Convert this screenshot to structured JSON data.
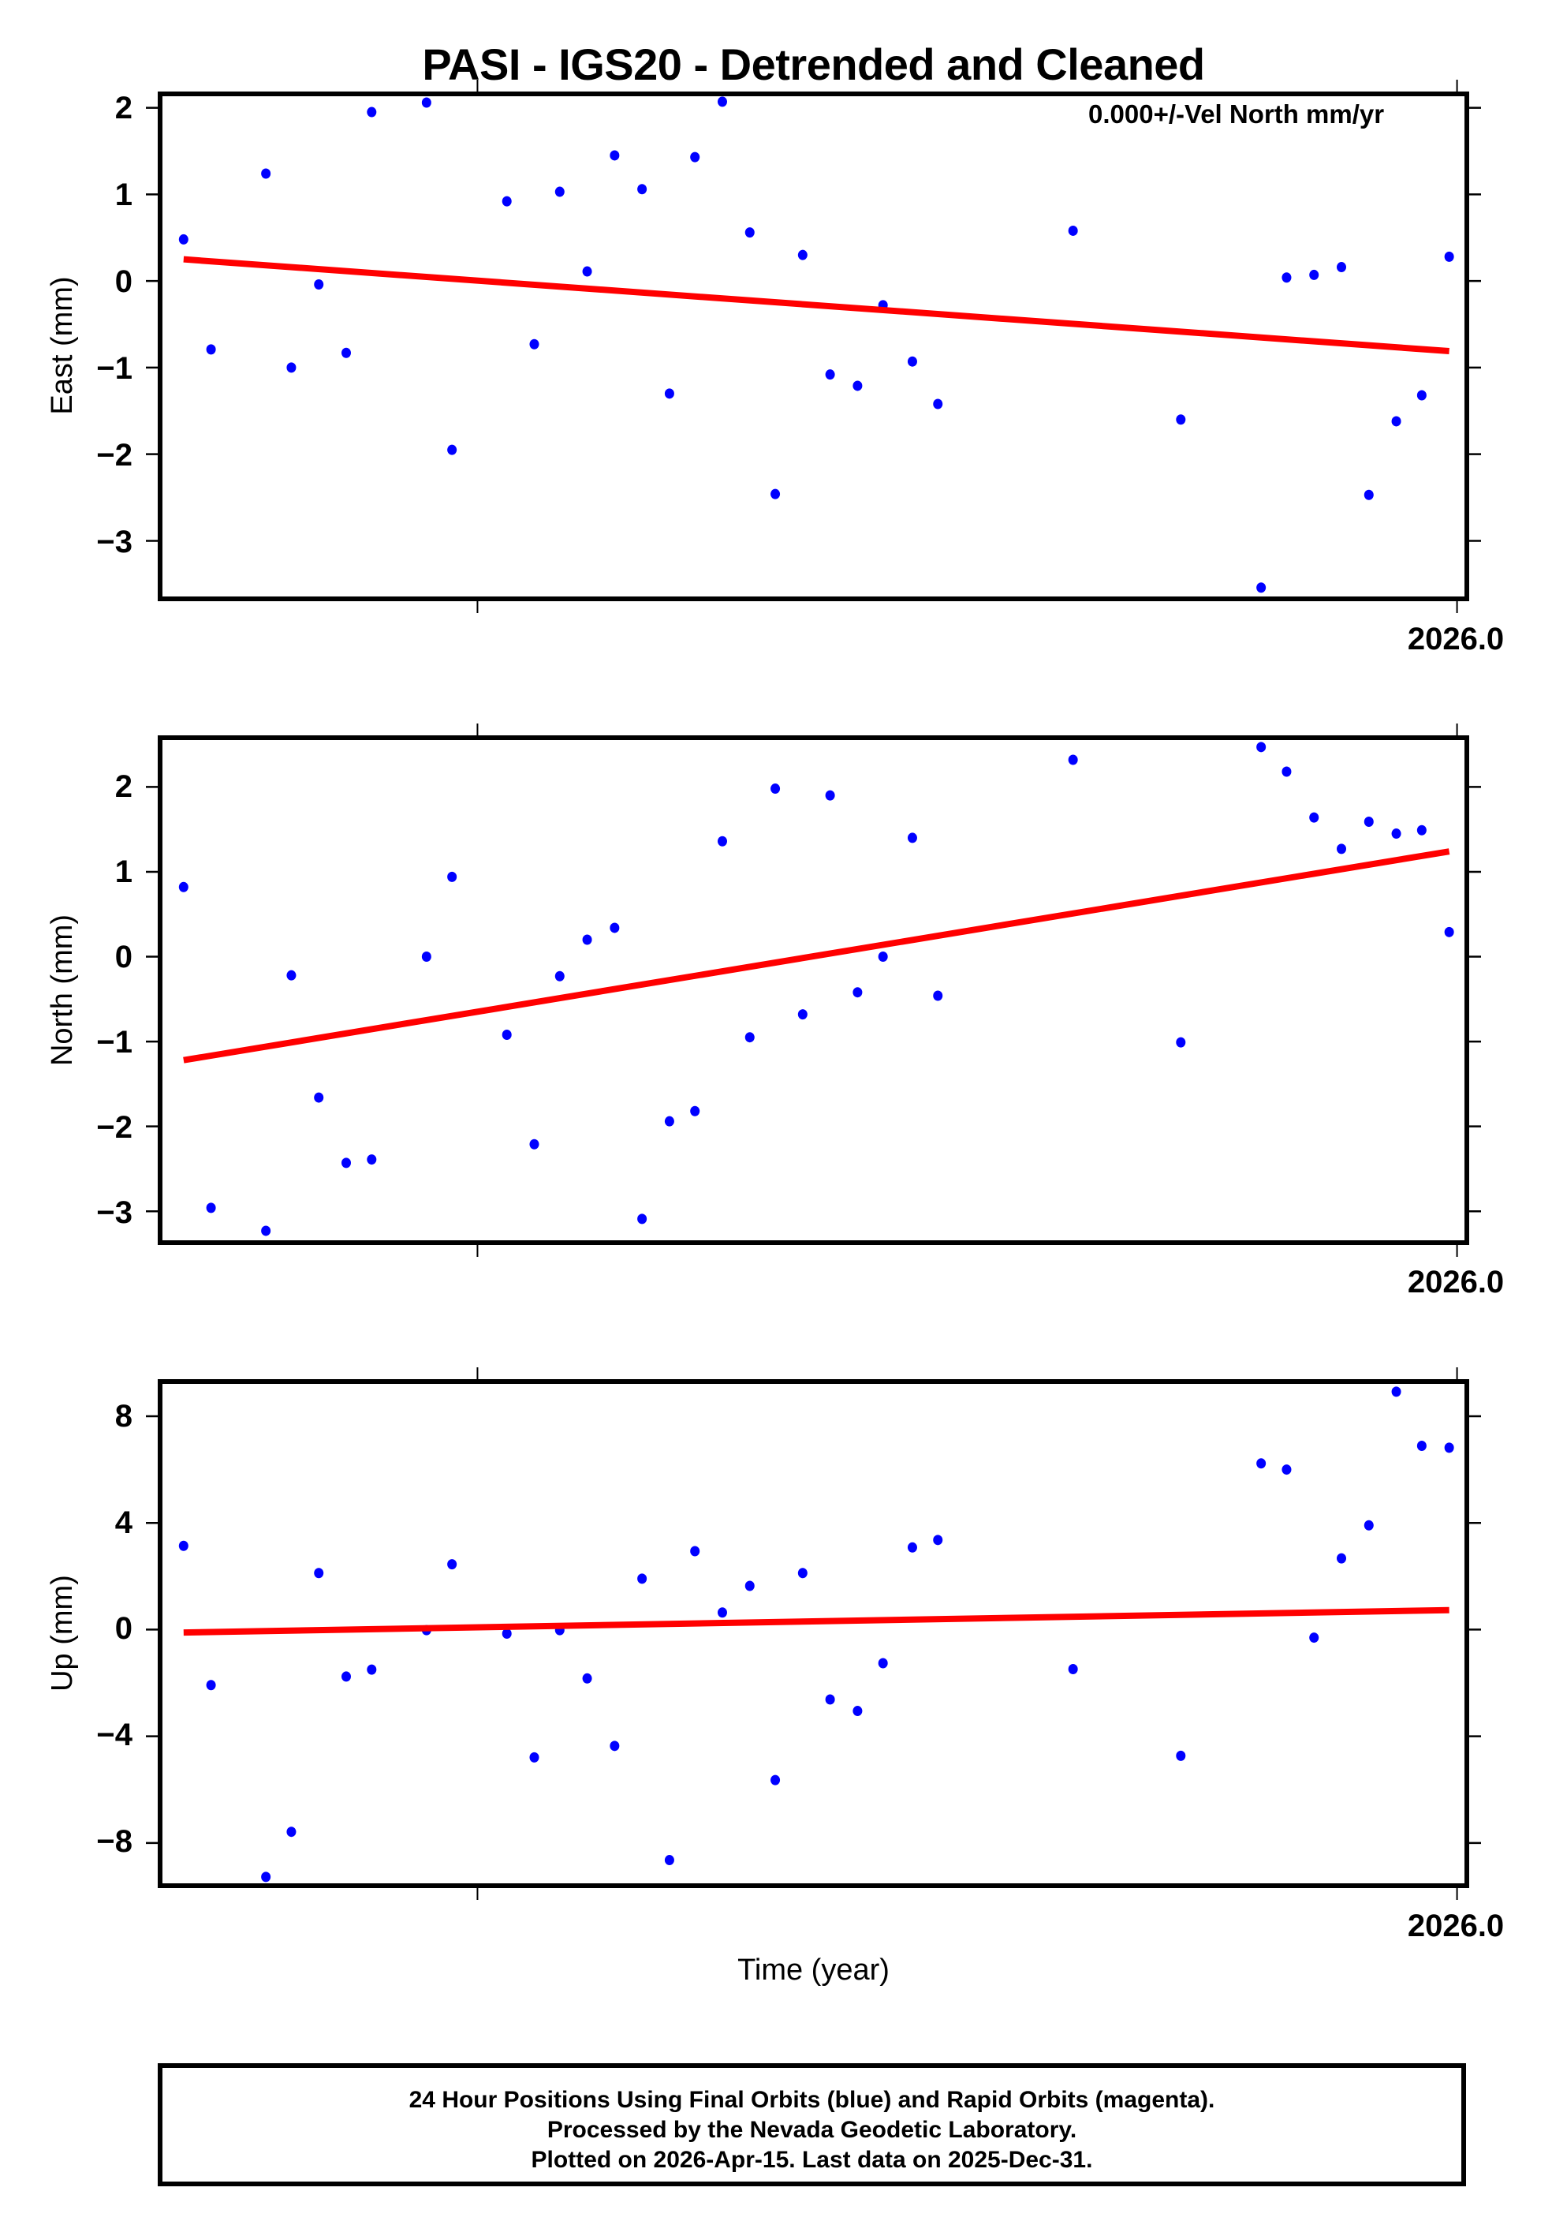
{
  "title": "PASI - IGS20 - Detrended and Cleaned",
  "annotation": "0.000+/-Vel North mm/yr",
  "xlabel": "Time (year)",
  "footer": {
    "lines": [
      "24 Hour Positions Using Final Orbits (blue) and Rapid Orbits (magenta).",
      "Processed by the Nevada Geodetic Laboratory.",
      "Plotted on 2026-Apr-15. Last data on 2025-Dec-31."
    ]
  },
  "colors": {
    "final_orbits": "#0000ff",
    "rapid_orbits": "#ff00ff",
    "trend": "#ff0000",
    "frame": "#000000"
  },
  "chart_data": [
    {
      "type": "scatter",
      "panel": "east",
      "title": "PASI - IGS20 - Detrended and Cleaned",
      "xlabel": "",
      "ylabel": "East (mm)",
      "xlim": [
        2025.338,
        2026.005
      ],
      "ylim": [
        -3.67,
        2.16
      ],
      "yticks": [
        2,
        1,
        0,
        -1,
        -2,
        -3
      ],
      "ytick_labels": [
        "2",
        "1",
        "0",
        "−1",
        "−2",
        "−3"
      ],
      "xticks": [
        2025.5,
        2026.0
      ],
      "xtick_labels": [
        "",
        "2026.0"
      ],
      "grid": false,
      "annotation": "0.000+/-Vel North mm/yr",
      "series": [
        {
          "name": "Final Orbits (blue)",
          "x": [
            2025.35,
            2025.364,
            2025.392,
            2025.405,
            2025.419,
            2025.433,
            2025.446,
            2025.474,
            2025.487,
            2025.515,
            2025.529,
            2025.542,
            2025.556,
            2025.57,
            2025.584,
            2025.598,
            2025.611,
            2025.625,
            2025.639,
            2025.652,
            2025.666,
            2025.68,
            2025.694,
            2025.707,
            2025.722,
            2025.735,
            2025.804,
            2025.859,
            2025.9,
            2025.913,
            2025.927,
            2025.941,
            2025.955,
            2025.969,
            2025.982,
            2025.996
          ],
          "values": [
            0.48,
            -0.79,
            1.24,
            -1.0,
            -0.04,
            -0.83,
            1.95,
            2.06,
            -1.95,
            0.92,
            -0.73,
            1.03,
            0.11,
            1.45,
            1.06,
            -1.3,
            1.43,
            2.07,
            0.56,
            -2.46,
            0.3,
            -1.08,
            -1.21,
            -0.28,
            -0.93,
            -1.42,
            0.58,
            -1.6,
            -3.54,
            0.04,
            0.07,
            0.16,
            -2.47,
            -1.62,
            -1.32,
            0.28
          ]
        },
        {
          "name": "Trend",
          "x": [
            2025.35,
            2025.996
          ],
          "values": [
            0.25,
            -0.81
          ]
        }
      ]
    },
    {
      "type": "scatter",
      "panel": "north",
      "xlabel": "",
      "ylabel": "North (mm)",
      "xlim": [
        2025.338,
        2026.005
      ],
      "ylim": [
        -3.37,
        2.58
      ],
      "yticks": [
        2,
        1,
        0,
        -1,
        -2,
        -3
      ],
      "ytick_labels": [
        "2",
        "1",
        "0",
        "−1",
        "−2",
        "−3"
      ],
      "xticks": [
        2025.5,
        2026.0
      ],
      "xtick_labels": [
        "",
        "2026.0"
      ],
      "grid": false,
      "series": [
        {
          "name": "Final Orbits (blue)",
          "x": [
            2025.35,
            2025.364,
            2025.392,
            2025.405,
            2025.419,
            2025.433,
            2025.446,
            2025.474,
            2025.487,
            2025.515,
            2025.529,
            2025.542,
            2025.556,
            2025.57,
            2025.584,
            2025.598,
            2025.611,
            2025.625,
            2025.639,
            2025.652,
            2025.666,
            2025.68,
            2025.694,
            2025.707,
            2025.722,
            2025.735,
            2025.804,
            2025.859,
            2025.9,
            2025.913,
            2025.927,
            2025.941,
            2025.955,
            2025.969,
            2025.982,
            2025.996
          ],
          "values": [
            0.82,
            -2.96,
            -3.23,
            -0.22,
            -1.66,
            -2.43,
            -2.39,
            0.0,
            0.94,
            -0.92,
            -2.21,
            -0.23,
            0.2,
            0.34,
            -3.09,
            -1.94,
            -1.82,
            1.36,
            -0.95,
            1.98,
            -0.68,
            1.9,
            -0.42,
            0.0,
            1.4,
            -0.46,
            2.32,
            -1.01,
            2.47,
            2.18,
            1.64,
            1.27,
            1.59,
            1.45,
            1.49,
            0.29
          ]
        },
        {
          "name": "Trend",
          "x": [
            2025.35,
            2025.996
          ],
          "values": [
            -1.22,
            1.24
          ]
        }
      ]
    },
    {
      "type": "scatter",
      "panel": "up",
      "xlabel": "Time (year)",
      "ylabel": "Up (mm)",
      "xlim": [
        2025.338,
        2026.005
      ],
      "ylim": [
        -9.6,
        9.3
      ],
      "yticks": [
        8,
        4,
        0,
        -4,
        -8
      ],
      "ytick_labels": [
        "8",
        "4",
        "0",
        "−4",
        "−8"
      ],
      "xticks": [
        2025.5,
        2026.0
      ],
      "xtick_labels": [
        "",
        "2026.0"
      ],
      "grid": false,
      "series": [
        {
          "name": "Final Orbits (blue)",
          "x": [
            2025.35,
            2025.364,
            2025.392,
            2025.405,
            2025.419,
            2025.433,
            2025.446,
            2025.474,
            2025.487,
            2025.515,
            2025.529,
            2025.542,
            2025.556,
            2025.57,
            2025.584,
            2025.598,
            2025.611,
            2025.625,
            2025.639,
            2025.652,
            2025.666,
            2025.68,
            2025.694,
            2025.707,
            2025.722,
            2025.735,
            2025.804,
            2025.859,
            2025.9,
            2025.913,
            2025.927,
            2025.941,
            2025.955,
            2025.969,
            2025.982,
            2025.996
          ],
          "values": [
            3.14,
            -2.08,
            -9.27,
            -7.58,
            2.12,
            -1.76,
            -1.5,
            -0.02,
            2.45,
            -0.15,
            -4.79,
            -0.02,
            -1.83,
            -4.36,
            1.91,
            -8.64,
            2.94,
            0.64,
            1.64,
            -5.64,
            2.12,
            -2.62,
            -3.05,
            -1.26,
            3.08,
            3.36,
            -1.48,
            -4.73,
            6.23,
            6.0,
            -0.3,
            2.67,
            3.91,
            8.92,
            6.89,
            6.82
          ]
        },
        {
          "name": "Trend",
          "x": [
            2025.35,
            2025.996
          ],
          "values": [
            -0.11,
            0.73
          ]
        }
      ]
    }
  ]
}
